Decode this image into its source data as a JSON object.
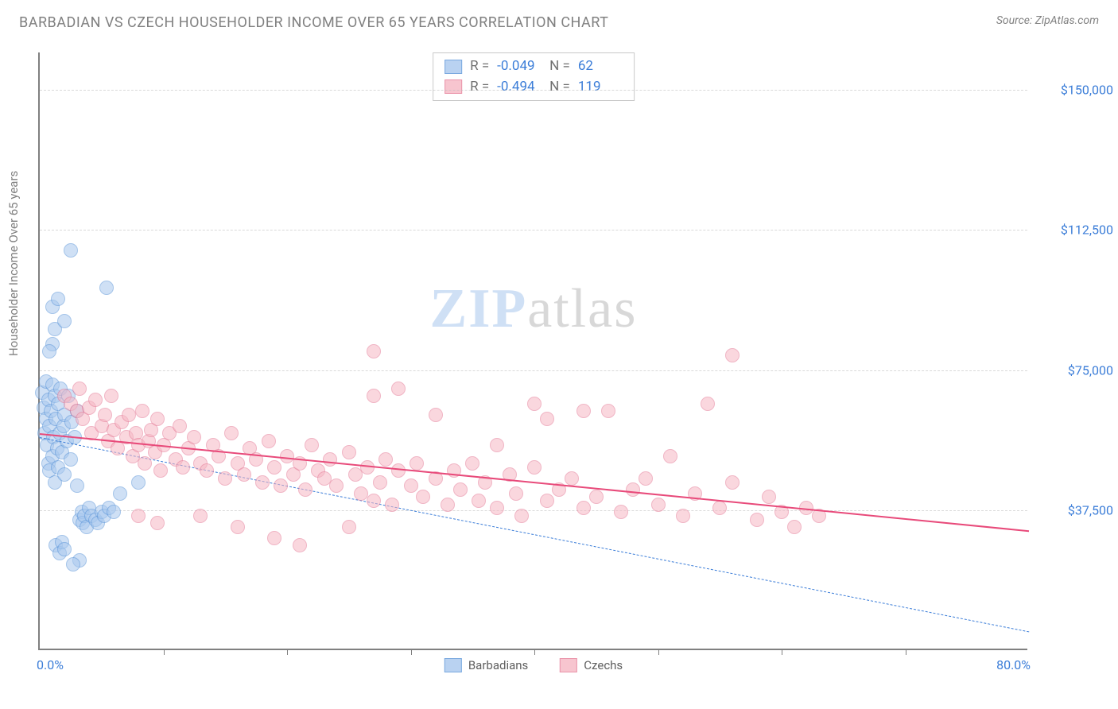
{
  "title": "BARBADIAN VS CZECH HOUSEHOLDER INCOME OVER 65 YEARS CORRELATION CHART",
  "source": "Source: ZipAtlas.com",
  "ylabel": "Householder Income Over 65 years",
  "watermark": {
    "zip": "ZIP",
    "atlas": "atlas"
  },
  "chart": {
    "type": "scatter",
    "xlim": [
      0,
      80
    ],
    "ylim": [
      0,
      160000
    ],
    "x_ticks": [
      10,
      20,
      30,
      40,
      50,
      60,
      70
    ],
    "x_axis_min_label": "0.0%",
    "x_axis_max_label": "80.0%",
    "y_gridlines": [
      {
        "value": 37500,
        "label": "$37,500"
      },
      {
        "value": 75000,
        "label": "$75,000"
      },
      {
        "value": 112500,
        "label": "$112,500"
      },
      {
        "value": 150000,
        "label": "$150,000"
      }
    ],
    "background_color": "#ffffff",
    "grid_color": "#c0c0c0",
    "axis_color": "#808080",
    "tick_label_color": "#3b7dd8",
    "marker_radius": 9,
    "series": [
      {
        "name": "Barbadians",
        "fill": "#a8c8ee",
        "fill_opacity": 0.55,
        "stroke": "#5a94d8",
        "R": "-0.049",
        "N": "62",
        "regression": {
          "x1": 0,
          "y1": 57000,
          "x2": 80,
          "y2": 5000,
          "color": "#3b7dd8",
          "width": 1.5,
          "dash": true
        },
        "points": [
          [
            0.2,
            69000
          ],
          [
            0.3,
            65000
          ],
          [
            0.4,
            58000
          ],
          [
            0.5,
            62000
          ],
          [
            0.5,
            72000
          ],
          [
            0.6,
            55000
          ],
          [
            0.7,
            50000
          ],
          [
            0.7,
            67000
          ],
          [
            0.8,
            60000
          ],
          [
            0.8,
            48000
          ],
          [
            0.9,
            64000
          ],
          [
            1.0,
            71000
          ],
          [
            1.0,
            52000
          ],
          [
            1.1,
            57000
          ],
          [
            1.2,
            68000
          ],
          [
            1.2,
            45000
          ],
          [
            1.3,
            62000
          ],
          [
            1.4,
            54000
          ],
          [
            1.5,
            66000
          ],
          [
            1.5,
            49000
          ],
          [
            1.6,
            58000
          ],
          [
            1.7,
            70000
          ],
          [
            1.8,
            53000
          ],
          [
            1.9,
            60000
          ],
          [
            2.0,
            47000
          ],
          [
            2.0,
            63000
          ],
          [
            2.2,
            56000
          ],
          [
            2.3,
            68000
          ],
          [
            2.5,
            51000
          ],
          [
            2.6,
            61000
          ],
          [
            2.8,
            57000
          ],
          [
            3.0,
            64000
          ],
          [
            3.0,
            44000
          ],
          [
            3.2,
            35000
          ],
          [
            3.4,
            37000
          ],
          [
            3.5,
            34000
          ],
          [
            3.6,
            36000
          ],
          [
            3.8,
            33000
          ],
          [
            4.0,
            38000
          ],
          [
            4.2,
            36000
          ],
          [
            4.5,
            35000
          ],
          [
            4.7,
            34000
          ],
          [
            5.0,
            37000
          ],
          [
            5.2,
            36000
          ],
          [
            5.6,
            38000
          ],
          [
            6.0,
            37000
          ],
          [
            6.5,
            42000
          ],
          [
            1.0,
            82000
          ],
          [
            1.2,
            86000
          ],
          [
            1.0,
            92000
          ],
          [
            2.5,
            107000
          ],
          [
            2.0,
            88000
          ],
          [
            1.5,
            94000
          ],
          [
            5.4,
            97000
          ],
          [
            0.8,
            80000
          ],
          [
            1.3,
            28000
          ],
          [
            1.6,
            26000
          ],
          [
            1.8,
            29000
          ],
          [
            2.0,
            27000
          ],
          [
            3.2,
            24000
          ],
          [
            2.7,
            23000
          ],
          [
            8.0,
            45000
          ]
        ]
      },
      {
        "name": "Czechs",
        "fill": "#f6b7c4",
        "fill_opacity": 0.55,
        "stroke": "#e57a96",
        "R": "-0.494",
        "N": "119",
        "regression": {
          "x1": 0,
          "y1": 58000,
          "x2": 80,
          "y2": 32000,
          "color": "#e84a7a",
          "width": 2.5,
          "dash": false
        },
        "points": [
          [
            2,
            68000
          ],
          [
            2.5,
            66000
          ],
          [
            3,
            64000
          ],
          [
            3.2,
            70000
          ],
          [
            3.5,
            62000
          ],
          [
            4,
            65000
          ],
          [
            4.2,
            58000
          ],
          [
            4.5,
            67000
          ],
          [
            5,
            60000
          ],
          [
            5.3,
            63000
          ],
          [
            5.5,
            56000
          ],
          [
            5.8,
            68000
          ],
          [
            6,
            59000
          ],
          [
            6.3,
            54000
          ],
          [
            6.6,
            61000
          ],
          [
            7,
            57000
          ],
          [
            7.2,
            63000
          ],
          [
            7.5,
            52000
          ],
          [
            7.8,
            58000
          ],
          [
            8,
            55000
          ],
          [
            8.3,
            64000
          ],
          [
            8.5,
            50000
          ],
          [
            8.8,
            56000
          ],
          [
            9,
            59000
          ],
          [
            9.3,
            53000
          ],
          [
            9.5,
            62000
          ],
          [
            9.8,
            48000
          ],
          [
            10,
            55000
          ],
          [
            10.5,
            58000
          ],
          [
            11,
            51000
          ],
          [
            11.3,
            60000
          ],
          [
            11.6,
            49000
          ],
          [
            12,
            54000
          ],
          [
            12.5,
            57000
          ],
          [
            13,
            50000
          ],
          [
            13.5,
            48000
          ],
          [
            14,
            55000
          ],
          [
            14.5,
            52000
          ],
          [
            15,
            46000
          ],
          [
            15.5,
            58000
          ],
          [
            16,
            50000
          ],
          [
            16.5,
            47000
          ],
          [
            17,
            54000
          ],
          [
            17.5,
            51000
          ],
          [
            18,
            45000
          ],
          [
            18.5,
            56000
          ],
          [
            19,
            49000
          ],
          [
            19.5,
            44000
          ],
          [
            20,
            52000
          ],
          [
            20.5,
            47000
          ],
          [
            21,
            50000
          ],
          [
            21.5,
            43000
          ],
          [
            22,
            55000
          ],
          [
            22.5,
            48000
          ],
          [
            23,
            46000
          ],
          [
            23.5,
            51000
          ],
          [
            24,
            44000
          ],
          [
            25,
            53000
          ],
          [
            25.5,
            47000
          ],
          [
            26,
            42000
          ],
          [
            26.5,
            49000
          ],
          [
            27,
            40000
          ],
          [
            27,
            68000
          ],
          [
            27.5,
            45000
          ],
          [
            28,
            51000
          ],
          [
            28.5,
            39000
          ],
          [
            29,
            70000
          ],
          [
            29,
            48000
          ],
          [
            30,
            44000
          ],
          [
            30.5,
            50000
          ],
          [
            31,
            41000
          ],
          [
            32,
            46000
          ],
          [
            32,
            63000
          ],
          [
            33,
            39000
          ],
          [
            33.5,
            48000
          ],
          [
            34,
            43000
          ],
          [
            35,
            50000
          ],
          [
            35.5,
            40000
          ],
          [
            36,
            45000
          ],
          [
            37,
            55000
          ],
          [
            37,
            38000
          ],
          [
            38,
            47000
          ],
          [
            38.5,
            42000
          ],
          [
            39,
            36000
          ],
          [
            40,
            49000
          ],
          [
            40,
            66000
          ],
          [
            41,
            62000
          ],
          [
            41,
            40000
          ],
          [
            42,
            43000
          ],
          [
            43,
            46000
          ],
          [
            44,
            38000
          ],
          [
            44,
            64000
          ],
          [
            45,
            41000
          ],
          [
            46,
            64000
          ],
          [
            47,
            37000
          ],
          [
            48,
            43000
          ],
          [
            49,
            46000
          ],
          [
            50,
            39000
          ],
          [
            51,
            52000
          ],
          [
            52,
            36000
          ],
          [
            53,
            42000
          ],
          [
            54,
            66000
          ],
          [
            55,
            38000
          ],
          [
            56,
            45000
          ],
          [
            58,
            35000
          ],
          [
            59,
            41000
          ],
          [
            60,
            37000
          ],
          [
            61,
            33000
          ],
          [
            62,
            38000
          ],
          [
            63,
            36000
          ],
          [
            8,
            36000
          ],
          [
            9.5,
            34000
          ],
          [
            13,
            36000
          ],
          [
            16,
            33000
          ],
          [
            19,
            30000
          ],
          [
            21,
            28000
          ],
          [
            25,
            33000
          ],
          [
            56,
            79000
          ],
          [
            27,
            80000
          ]
        ]
      }
    ]
  }
}
